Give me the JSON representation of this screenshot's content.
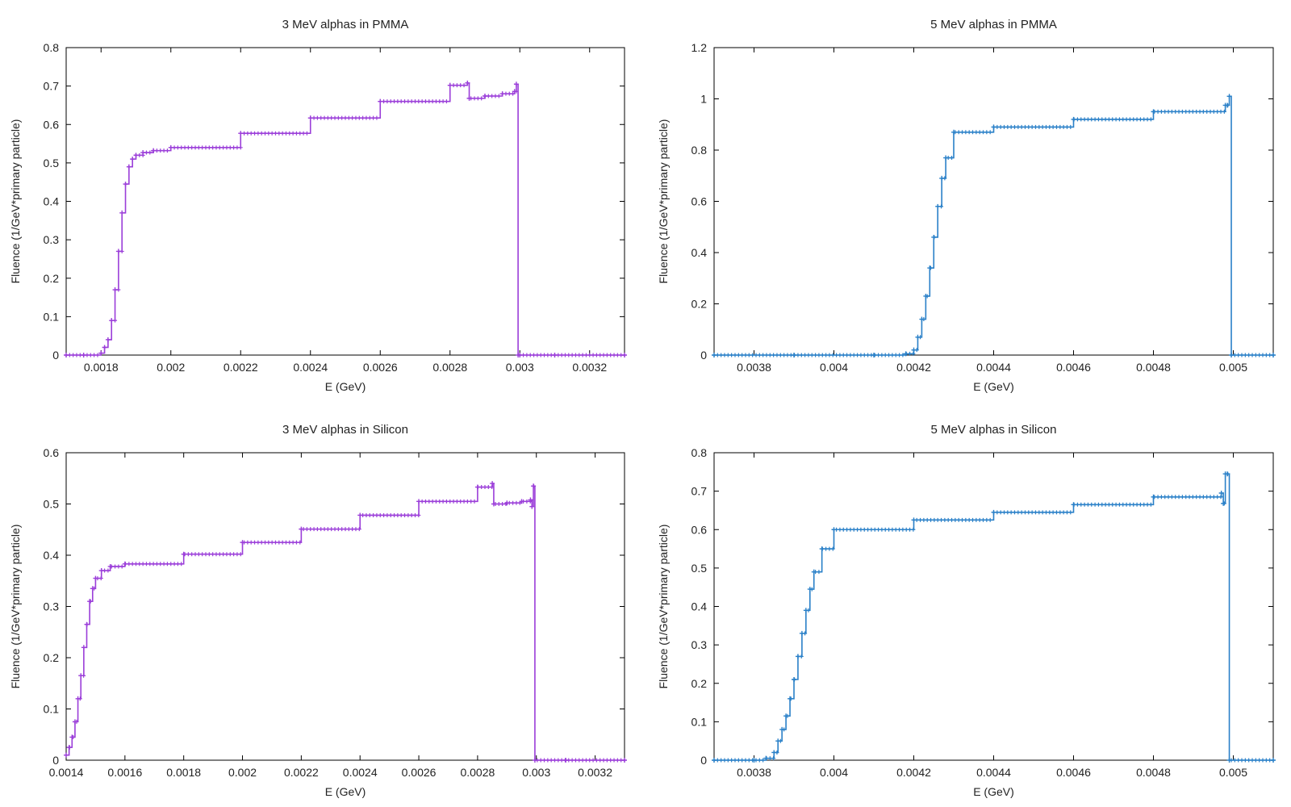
{
  "chart_data": [
    {
      "type": "line",
      "title": "3 MeV alphas in PMMA",
      "xlabel": "E (GeV)",
      "ylabel": "Fluence (1/GeV*primary particle)",
      "xlim": [
        0.0017,
        0.0033
      ],
      "ylim": [
        0,
        0.8
      ],
      "xticks": [
        "0.0018",
        "0.002",
        "0.0022",
        "0.0024",
        "0.0026",
        "0.0028",
        "0.003",
        "0.0032"
      ],
      "yticks": [
        "0",
        "0.1",
        "0.2",
        "0.3",
        "0.4",
        "0.5",
        "0.6",
        "0.7",
        "0.8"
      ],
      "grid": false,
      "color": "#9b3ed9",
      "x": [
        0.0017,
        0.00175,
        0.0018,
        0.00181,
        0.00182,
        0.00183,
        0.00184,
        0.00185,
        0.00186,
        0.00187,
        0.00188,
        0.00189,
        0.0019,
        0.00192,
        0.00195,
        0.002,
        0.0022,
        0.0024,
        0.0026,
        0.0028,
        0.00285,
        0.002855,
        0.0029,
        0.00295,
        0.002985,
        0.00299,
        0.002995,
        0.003,
        0.0031,
        0.0033
      ],
      "y": [
        0,
        0,
        0.005,
        0.02,
        0.04,
        0.09,
        0.17,
        0.27,
        0.37,
        0.445,
        0.49,
        0.51,
        0.52,
        0.527,
        0.532,
        0.54,
        0.577,
        0.617,
        0.66,
        0.702,
        0.708,
        0.668,
        0.674,
        0.68,
        0.686,
        0.705,
        0.0,
        0,
        0,
        0
      ]
    },
    {
      "type": "line",
      "title": "5 MeV alphas in PMMA",
      "xlabel": "E (GeV)",
      "ylabel": "Fluence (1/GeV*primary particle)",
      "xlim": [
        0.0037,
        0.0051
      ],
      "ylim": [
        0,
        1.2
      ],
      "xticks": [
        "0.0038",
        "0.004",
        "0.0042",
        "0.0044",
        "0.0046",
        "0.0048",
        "0.005"
      ],
      "yticks": [
        "0",
        "0.2",
        "0.4",
        "0.6",
        "0.8",
        "1",
        "1.2"
      ],
      "grid": false,
      "color": "#2a80c8",
      "x": [
        0.0037,
        0.0039,
        0.0041,
        0.00418,
        0.0042,
        0.00421,
        0.00422,
        0.00423,
        0.00424,
        0.00425,
        0.00426,
        0.00427,
        0.00428,
        0.0043,
        0.0044,
        0.0046,
        0.0048,
        0.00498,
        0.004985,
        0.00499,
        0.004995,
        0.0051
      ],
      "y": [
        0,
        0,
        0,
        0.005,
        0.02,
        0.07,
        0.14,
        0.23,
        0.34,
        0.46,
        0.58,
        0.69,
        0.77,
        0.87,
        0.89,
        0.92,
        0.95,
        0.975,
        0.975,
        1.01,
        0,
        0
      ]
    },
    {
      "type": "line",
      "title": "3 MeV alphas in Silicon",
      "xlabel": "E (GeV)",
      "ylabel": "Fluence (1/GeV*primary particle)",
      "xlim": [
        0.0014,
        0.0033
      ],
      "ylim": [
        0,
        0.6
      ],
      "xticks": [
        "0.0014",
        "0.0016",
        "0.0018",
        "0.002",
        "0.0022",
        "0.0024",
        "0.0026",
        "0.0028",
        "0.003",
        "0.0032"
      ],
      "yticks": [
        "0",
        "0.1",
        "0.2",
        "0.3",
        "0.4",
        "0.5",
        "0.6"
      ],
      "grid": false,
      "color": "#9b3ed9",
      "x": [
        0.0014,
        0.00141,
        0.00142,
        0.00143,
        0.00144,
        0.00145,
        0.00146,
        0.00147,
        0.00148,
        0.00149,
        0.0015,
        0.00152,
        0.00155,
        0.0016,
        0.0018,
        0.002,
        0.0022,
        0.0024,
        0.0026,
        0.0028,
        0.00285,
        0.002855,
        0.0029,
        0.00295,
        0.00298,
        0.002985,
        0.00299,
        0.002995,
        0.0031,
        0.0033
      ],
      "y": [
        0.01,
        0.025,
        0.045,
        0.075,
        0.12,
        0.165,
        0.22,
        0.265,
        0.31,
        0.335,
        0.355,
        0.37,
        0.378,
        0.383,
        0.402,
        0.425,
        0.451,
        0.478,
        0.505,
        0.533,
        0.54,
        0.5,
        0.502,
        0.505,
        0.508,
        0.495,
        0.535,
        0,
        0,
        0
      ]
    },
    {
      "type": "line",
      "title": "5 MeV alphas in Silicon",
      "xlabel": "E (GeV)",
      "ylabel": "Fluence (1/GeV*primary particle)",
      "xlim": [
        0.0037,
        0.0051
      ],
      "ylim": [
        0,
        0.8
      ],
      "xticks": [
        "0.0038",
        "0.004",
        "0.0042",
        "0.0044",
        "0.0046",
        "0.0048",
        "0.005"
      ],
      "yticks": [
        "0",
        "0.1",
        "0.2",
        "0.3",
        "0.4",
        "0.5",
        "0.6",
        "0.7",
        "0.8"
      ],
      "grid": false,
      "color": "#2a80c8",
      "x": [
        0.0037,
        0.0038,
        0.00383,
        0.00385,
        0.00386,
        0.00387,
        0.00388,
        0.00389,
        0.0039,
        0.00391,
        0.00392,
        0.00393,
        0.00394,
        0.00395,
        0.00397,
        0.004,
        0.0042,
        0.0044,
        0.0046,
        0.0048,
        0.00497,
        0.004975,
        0.00498,
        0.004985,
        0.00499,
        0.0051
      ],
      "y": [
        0,
        0,
        0.005,
        0.02,
        0.05,
        0.08,
        0.115,
        0.16,
        0.21,
        0.27,
        0.33,
        0.39,
        0.445,
        0.49,
        0.55,
        0.6,
        0.625,
        0.645,
        0.665,
        0.685,
        0.695,
        0.668,
        0.745,
        0.745,
        0,
        0
      ]
    }
  ]
}
